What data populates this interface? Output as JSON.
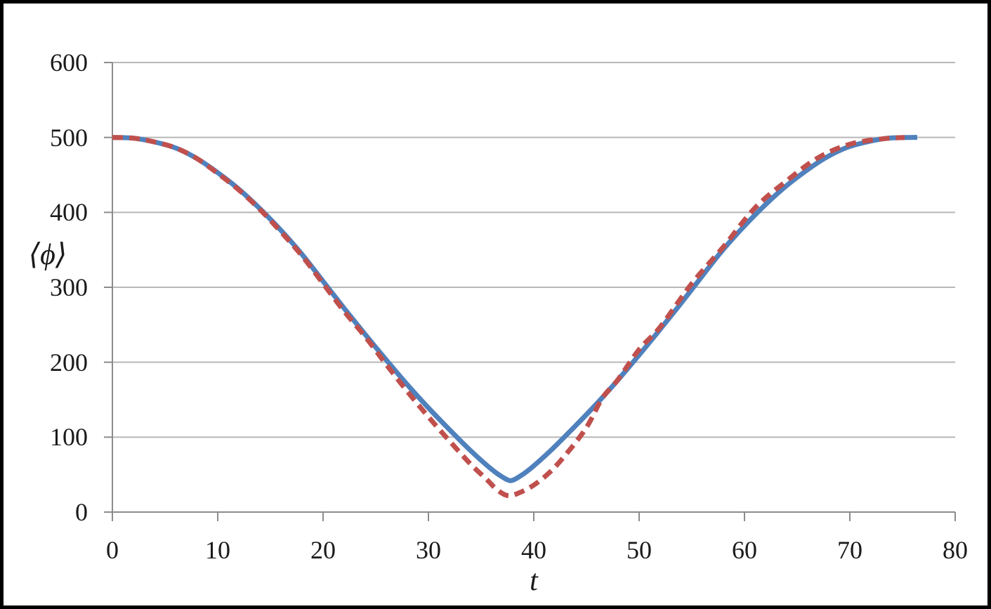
{
  "figure": {
    "background": "#ffffff",
    "border_color": "#000000"
  },
  "chart_data": {
    "type": "line",
    "title": "",
    "xlabel": "t",
    "ylabel": "⟨ϕ⟩",
    "xlim": [
      0,
      80
    ],
    "ylim": [
      0,
      600
    ],
    "x_ticks": [
      0,
      10,
      20,
      30,
      40,
      50,
      60,
      70,
      80
    ],
    "y_ticks": [
      0,
      100,
      200,
      300,
      400,
      500,
      600
    ],
    "grid": "horizontal-only",
    "legend_position": "none",
    "axis_color": "#8c8c8c",
    "grid_color": "#b8b8b8",
    "series": [
      {
        "name": "solid-blue-curve",
        "color": "#4F81BD",
        "line_style": "solid",
        "line_width": 7,
        "x": [
          0,
          2,
          4,
          6,
          8,
          10,
          12,
          14,
          16,
          18,
          20,
          22,
          24,
          26,
          28,
          30,
          32,
          34,
          36,
          37,
          37.8,
          38.6,
          39.6,
          41.6,
          43.6,
          45.6,
          47.6,
          49.6,
          51.6,
          53.6,
          55.6,
          57.6,
          59.6,
          61.6,
          63.6,
          65.6,
          67.6,
          69.6,
          71.6,
          73.6,
          75.6,
          76.4
        ],
        "y": [
          500,
          499,
          494,
          486,
          472,
          453,
          431,
          405,
          376,
          344,
          308,
          272,
          237,
          203,
          170,
          139,
          110,
          82,
          57,
          47,
          42,
          47,
          57,
          82,
          110,
          139,
          170,
          203,
          237,
          272,
          308,
          344,
          376,
          405,
          431,
          453,
          472,
          486,
          494,
          499,
          500,
          500
        ]
      },
      {
        "name": "dashed-red-curve",
        "color": "#C0504D",
        "line_style": "dashed",
        "line_width": 7,
        "dash_pattern": [
          15,
          9
        ],
        "x": [
          0,
          2,
          4,
          6,
          8,
          10,
          12,
          14,
          16,
          18,
          20,
          22,
          24,
          26,
          28,
          30,
          32,
          34,
          35.5,
          36.5,
          37.5,
          38.5,
          40,
          41.5,
          43,
          45,
          46.5,
          48,
          50,
          52,
          55,
          58,
          61,
          64,
          67,
          70,
          73,
          75.2
        ],
        "y": [
          500,
          499,
          494,
          486,
          472,
          452,
          430,
          404,
          374,
          342,
          305,
          268,
          234,
          197,
          161,
          127,
          95,
          64,
          44,
          30,
          22,
          25,
          36,
          53,
          76,
          113,
          152,
          177,
          217,
          247,
          305,
          354,
          406,
          442,
          473,
          491,
          498,
          500
        ]
      }
    ]
  }
}
